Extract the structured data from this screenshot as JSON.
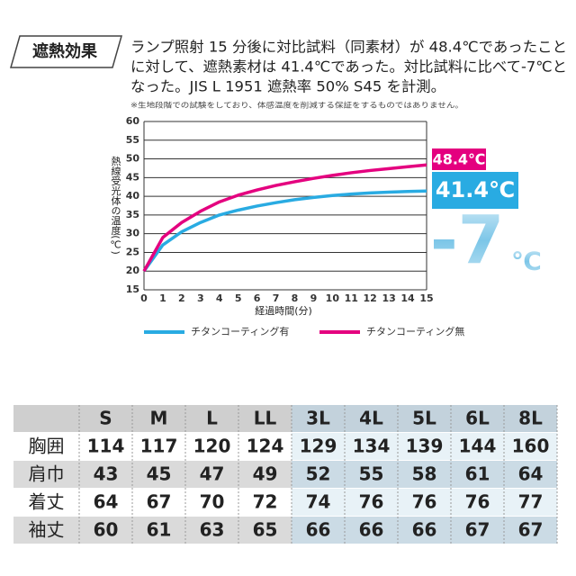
{
  "header": {
    "badge": "遮熱効果",
    "lines": [
      "ランプ照射 15 分後に対比試料（同素材）が 48.4℃であったこと",
      "に対して、遮熱素材は 41.4℃であった。対比試料に比べて-7℃と",
      "なった。JIS L 1951 遮熱率 50% S45 を計測。"
    ],
    "note": "※生地段階での試験をしており、体感温度を削減する保証をするものではありません。"
  },
  "chart_data": {
    "type": "line",
    "x_label": "経過時間(分)",
    "y_label": "熱線受光体の温度(℃)",
    "x": [
      0,
      1,
      2,
      3,
      4,
      5,
      6,
      7,
      8,
      9,
      10,
      11,
      12,
      13,
      14,
      15
    ],
    "xlim": [
      0,
      15
    ],
    "xticks": [
      0,
      1,
      2,
      3,
      4,
      5,
      6,
      7,
      8,
      9,
      10,
      11,
      12,
      13,
      14,
      15
    ],
    "ylim": [
      15,
      60
    ],
    "yticks": [
      15,
      20,
      25,
      30,
      35,
      40,
      45,
      50,
      55,
      60
    ],
    "grid": true,
    "series": [
      {
        "name": "チタンコーティング有",
        "color": "#29abe2",
        "values": [
          20,
          27,
          30.5,
          33,
          35,
          36.3,
          37.4,
          38.3,
          39.1,
          39.7,
          40.2,
          40.6,
          40.9,
          41.1,
          41.3,
          41.4
        ]
      },
      {
        "name": "チタンコーティング無",
        "color": "#e4007f",
        "values": [
          20,
          29,
          33,
          36,
          38.5,
          40.3,
          41.7,
          42.9,
          43.9,
          44.8,
          45.6,
          46.3,
          46.9,
          47.4,
          47.9,
          48.4
        ]
      }
    ],
    "annotations": [
      "48.4℃",
      "41.4℃",
      "-7",
      "℃"
    ]
  },
  "table": {
    "columns": [
      "S",
      "M",
      "L",
      "LL",
      "3L",
      "4L",
      "5L",
      "6L",
      "8L"
    ],
    "rows": [
      {
        "label": "胸囲",
        "values": [
          114,
          117,
          120,
          124,
          129,
          134,
          139,
          144,
          160
        ]
      },
      {
        "label": "肩巾",
        "values": [
          43,
          45,
          47,
          49,
          52,
          55,
          58,
          61,
          64
        ]
      },
      {
        "label": "着丈",
        "values": [
          64,
          67,
          70,
          72,
          74,
          76,
          76,
          76,
          77
        ]
      },
      {
        "label": "袖丈",
        "values": [
          60,
          61,
          63,
          65,
          66,
          66,
          66,
          67,
          67
        ]
      }
    ]
  }
}
